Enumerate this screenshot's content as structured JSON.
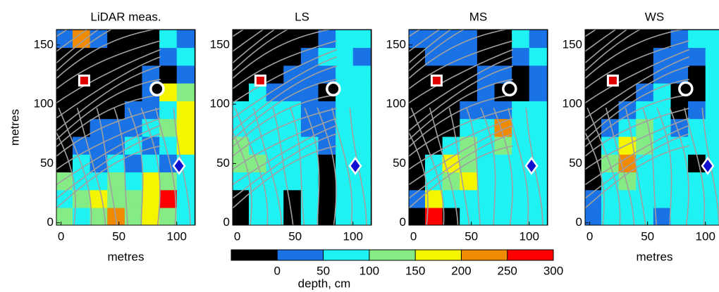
{
  "chart_data": [
    {
      "type": "heatmap",
      "title": "LiDAR meas.",
      "ylabel": "metres",
      "xlabel": "metres",
      "xlim": [
        -4,
        116
      ],
      "ylim": [
        -2,
        163
      ],
      "xticks": [
        0,
        50,
        100
      ],
      "yticks": [
        0,
        50,
        100,
        150
      ],
      "x": [
        2.5,
        17.5,
        32.5,
        47.5,
        62.5,
        77.5,
        92.5,
        107.5
      ],
      "y": [
        155,
        140,
        125,
        110,
        95,
        80,
        65,
        50,
        35,
        20,
        5
      ],
      "z": [
        [
          25,
          225,
          25,
          -25,
          -25,
          -25,
          75,
          25
        ],
        [
          -25,
          -25,
          -25,
          -25,
          -25,
          -25,
          25,
          75
        ],
        [
          -25,
          -25,
          -25,
          -25,
          -25,
          25,
          -25,
          25
        ],
        [
          -25,
          -25,
          -25,
          -25,
          -25,
          25,
          175,
          125
        ],
        [
          -25,
          -25,
          -25,
          -25,
          25,
          25,
          75,
          175
        ],
        [
          -25,
          -25,
          25,
          25,
          25,
          75,
          125,
          175
        ],
        [
          -25,
          25,
          25,
          25,
          75,
          25,
          75,
          175
        ],
        [
          -25,
          75,
          25,
          75,
          25,
          75,
          25,
          75
        ],
        [
          125,
          75,
          75,
          125,
          75,
          175,
          125,
          75
        ],
        [
          75,
          125,
          175,
          125,
          125,
          175,
          275,
          75
        ],
        [
          125,
          75,
          125,
          225,
          125,
          175,
          125,
          75
        ]
      ],
      "markers": [
        {
          "x": 20,
          "y": 120
        },
        {
          "x": 83,
          "y": 113
        },
        {
          "x": 102,
          "y": 48
        }
      ]
    },
    {
      "type": "heatmap",
      "title": "LS",
      "xlim": [
        -4,
        116
      ],
      "ylim": [
        -2,
        163
      ],
      "xticks": [
        0,
        50,
        100
      ],
      "yticks": [
        0,
        50,
        100,
        150
      ],
      "x": [
        2.5,
        17.5,
        32.5,
        47.5,
        62.5,
        77.5,
        92.5,
        107.5
      ],
      "y": [
        155,
        140,
        125,
        110,
        95,
        80,
        65,
        50,
        35,
        20,
        5
      ],
      "z": [
        [
          -25,
          -25,
          -25,
          -25,
          -25,
          25,
          75,
          75
        ],
        [
          -25,
          -25,
          -25,
          -25,
          25,
          75,
          75,
          25
        ],
        [
          -25,
          -25,
          -25,
          25,
          25,
          25,
          75,
          75
        ],
        [
          -25,
          75,
          25,
          25,
          25,
          -25,
          75,
          75
        ],
        [
          75,
          75,
          75,
          75,
          25,
          25,
          75,
          75
        ],
        [
          75,
          75,
          75,
          75,
          25,
          25,
          75,
          75
        ],
        [
          125,
          75,
          75,
          75,
          75,
          25,
          75,
          75
        ],
        [
          125,
          125,
          75,
          75,
          75,
          -25,
          75,
          75
        ],
        [
          75,
          75,
          75,
          75,
          75,
          -25,
          75,
          75
        ],
        [
          -25,
          75,
          75,
          -25,
          75,
          -25,
          75,
          75
        ],
        [
          -25,
          75,
          75,
          -25,
          75,
          -25,
          75,
          75
        ]
      ],
      "markers": [
        {
          "x": 20,
          "y": 120
        },
        {
          "x": 83,
          "y": 113
        },
        {
          "x": 102,
          "y": 48
        }
      ]
    },
    {
      "type": "heatmap",
      "title": "MS",
      "xlim": [
        -4,
        116
      ],
      "ylim": [
        -2,
        163
      ],
      "xticks": [
        0,
        50,
        100
      ],
      "yticks": [
        0,
        50,
        100,
        150
      ],
      "x": [
        2.5,
        17.5,
        32.5,
        47.5,
        62.5,
        77.5,
        92.5,
        107.5
      ],
      "y": [
        155,
        140,
        125,
        110,
        95,
        80,
        65,
        50,
        35,
        20,
        5
      ],
      "z": [
        [
          25,
          25,
          25,
          25,
          -25,
          -25,
          75,
          25
        ],
        [
          -25,
          25,
          25,
          25,
          -25,
          -25,
          25,
          75
        ],
        [
          -25,
          -25,
          -25,
          -25,
          25,
          25,
          -25,
          25
        ],
        [
          -25,
          -25,
          -25,
          -25,
          25,
          -25,
          -25,
          25
        ],
        [
          -25,
          -25,
          -25,
          25,
          25,
          25,
          75,
          75
        ],
        [
          -25,
          -25,
          -25,
          75,
          75,
          225,
          75,
          75
        ],
        [
          -25,
          -25,
          75,
          125,
          75,
          125,
          75,
          75
        ],
        [
          -25,
          75,
          175,
          125,
          75,
          75,
          75,
          75
        ],
        [
          -25,
          75,
          125,
          175,
          75,
          75,
          75,
          75
        ],
        [
          25,
          175,
          75,
          75,
          75,
          75,
          75,
          75
        ],
        [
          -25,
          275,
          -25,
          75,
          75,
          75,
          75,
          75
        ]
      ],
      "markers": [
        {
          "x": 20,
          "y": 120
        },
        {
          "x": 83,
          "y": 113
        },
        {
          "x": 102,
          "y": 48
        }
      ]
    },
    {
      "type": "heatmap",
      "title": "WS",
      "xlabel": "metres",
      "xlim": [
        -4,
        116
      ],
      "ylim": [
        -2,
        163
      ],
      "xticks": [
        0,
        50,
        100
      ],
      "yticks": [
        0,
        50,
        100,
        150
      ],
      "x": [
        2.5,
        17.5,
        32.5,
        47.5,
        62.5,
        77.5,
        92.5,
        107.5
      ],
      "y": [
        155,
        140,
        125,
        110,
        95,
        80,
        65,
        50,
        35,
        20,
        5
      ],
      "z": [
        [
          -25,
          -25,
          -25,
          -25,
          -25,
          25,
          75,
          75
        ],
        [
          -25,
          -25,
          -25,
          -25,
          25,
          25,
          25,
          75
        ],
        [
          -25,
          -25,
          -25,
          -25,
          25,
          25,
          -25,
          75
        ],
        [
          -25,
          -25,
          -25,
          25,
          75,
          -25,
          -25,
          75
        ],
        [
          -25,
          -25,
          25,
          75,
          75,
          -25,
          25,
          75
        ],
        [
          -25,
          25,
          75,
          125,
          75,
          25,
          75,
          75
        ],
        [
          -25,
          75,
          175,
          125,
          75,
          75,
          75,
          75
        ],
        [
          -25,
          125,
          225,
          75,
          75,
          75,
          -25,
          75
        ],
        [
          -25,
          75,
          125,
          75,
          75,
          75,
          75,
          75
        ],
        [
          25,
          75,
          75,
          75,
          75,
          75,
          75,
          75
        ],
        [
          25,
          75,
          75,
          75,
          25,
          75,
          75,
          75
        ]
      ],
      "markers": [
        {
          "x": 20,
          "y": 120
        },
        {
          "x": 83,
          "y": 113
        },
        {
          "x": 102,
          "y": 48
        }
      ]
    }
  ],
  "colorbar": {
    "label": "depth, cm",
    "lim": [
      -50,
      300
    ],
    "ticks": [
      0,
      50,
      100,
      150,
      200,
      250,
      300
    ],
    "colors": [
      "#000000",
      "#1a73e6",
      "#1ff2f2",
      "#85eb85",
      "#f5f500",
      "#f08a00",
      "#ff0000"
    ]
  }
}
